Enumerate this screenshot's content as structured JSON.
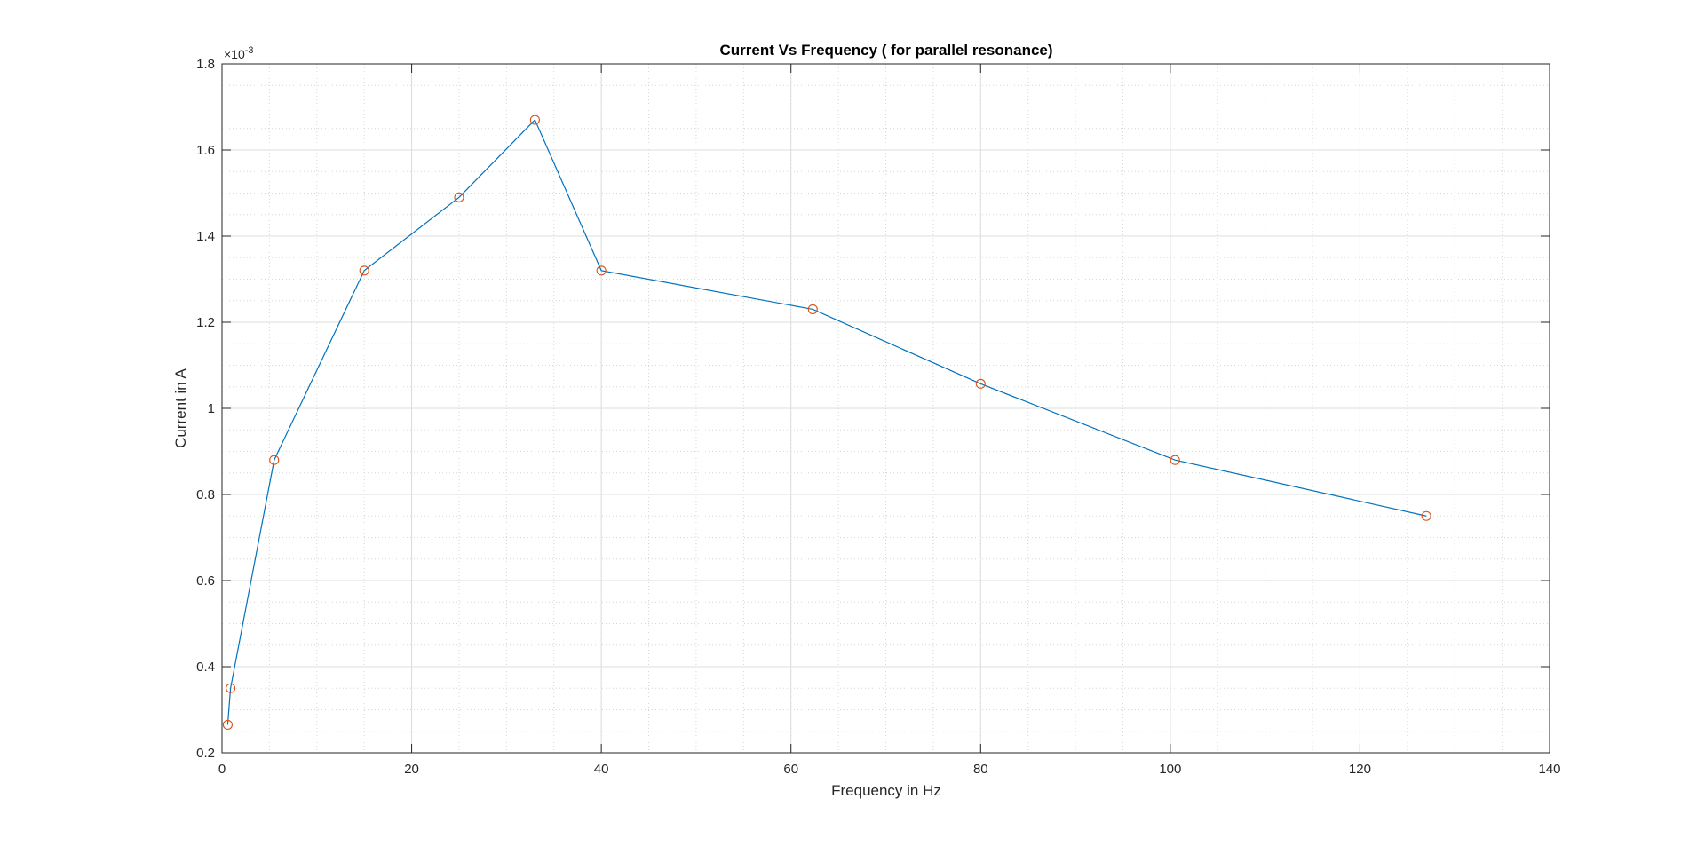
{
  "chart_data": {
    "type": "line",
    "title": "Current Vs Frequency ( for parallel resonance)",
    "xlabel": "Frequency in Hz",
    "ylabel": "Current in A",
    "y_exponent_label": "×10",
    "y_exponent_power": "-3",
    "xlim": [
      0,
      140
    ],
    "ylim": [
      0.0002,
      0.0018
    ],
    "x_ticks": [
      0,
      20,
      40,
      60,
      80,
      100,
      120,
      140
    ],
    "x_tick_labels": [
      "0",
      "20",
      "40",
      "60",
      "80",
      "100",
      "120",
      "140"
    ],
    "y_ticks": [
      0.0002,
      0.0004,
      0.0006,
      0.0008,
      0.001,
      0.0012,
      0.0014,
      0.0016,
      0.0018
    ],
    "y_tick_labels": [
      "0.2",
      "0.4",
      "0.6",
      "0.8",
      "1",
      "1.2",
      "1.4",
      "1.6",
      "1.8"
    ],
    "grid": true,
    "minor_grid": true,
    "series": [
      {
        "x": [
          0.6,
          0.9,
          5.5,
          15,
          25,
          33,
          40,
          62.3,
          80,
          100.5,
          127
        ],
        "y": [
          0.000265,
          0.00035,
          0.00088,
          0.00132,
          0.00149,
          0.00167,
          0.00132,
          0.00123,
          0.001057,
          0.00088,
          0.00075
        ],
        "line_color": "#0072BD",
        "marker": "circle",
        "marker_color": "#D95319"
      }
    ]
  }
}
